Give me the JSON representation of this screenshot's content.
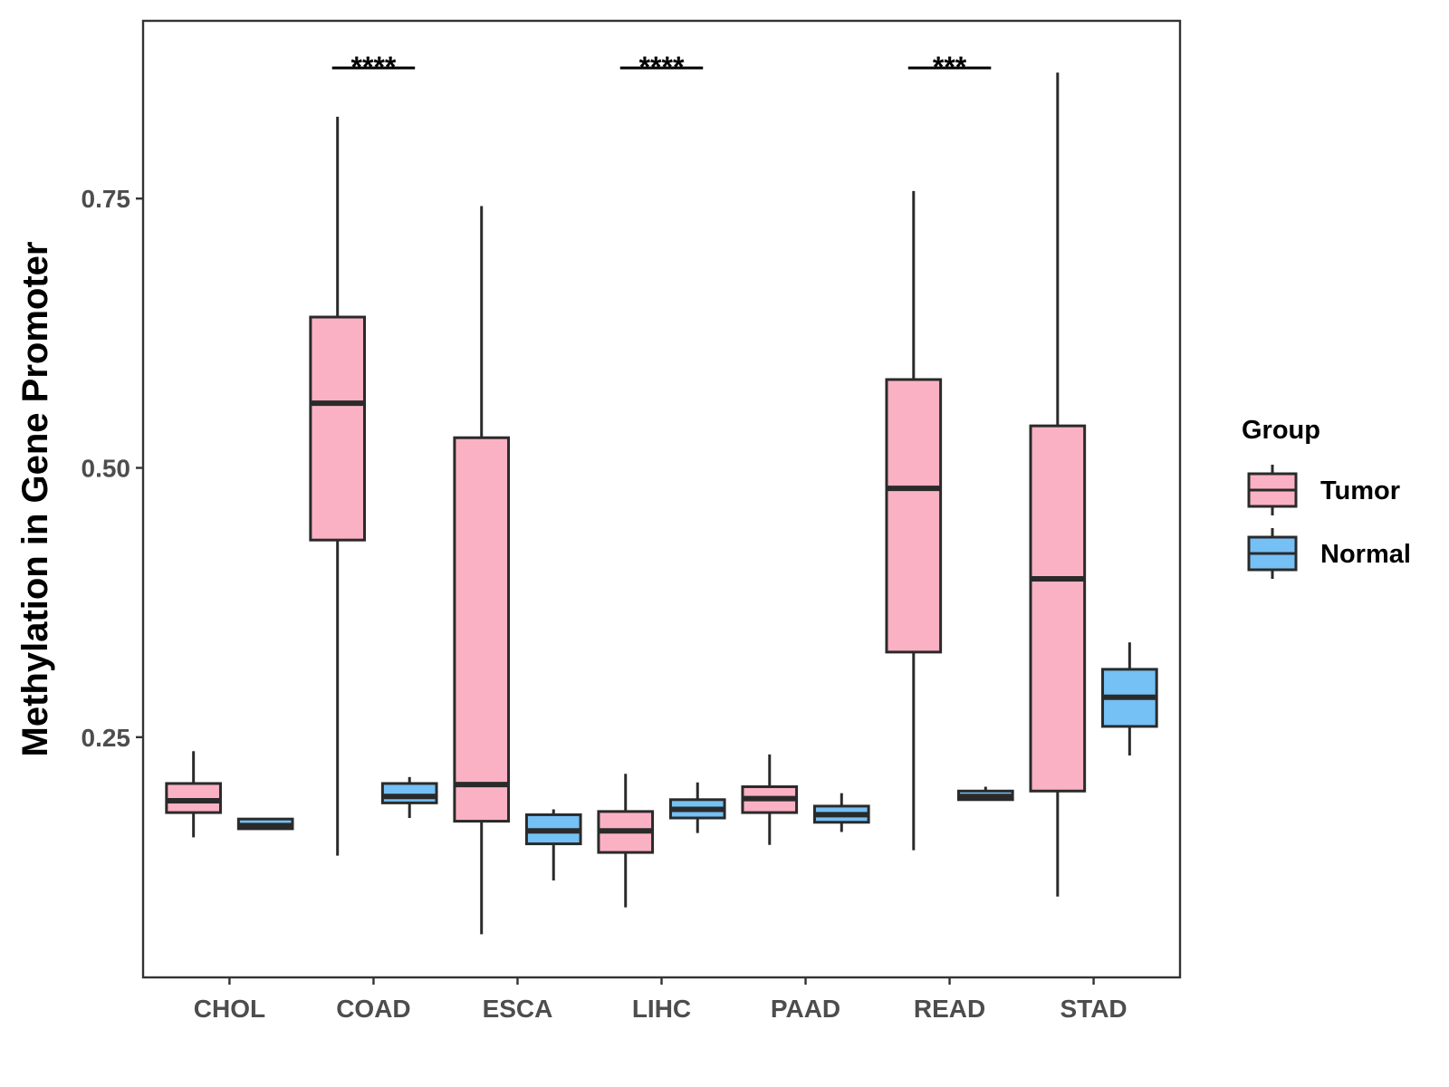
{
  "chart_data": {
    "type": "boxplot",
    "title": "",
    "xlabel": "",
    "ylabel": "Methylation in Gene Promoter",
    "ylim": [
      0.027,
      0.915
    ],
    "yticks": [
      0.25,
      0.5,
      0.75
    ],
    "ytick_labels": [
      "0.25",
      "0.50",
      "0.75"
    ],
    "categories": [
      "CHOL",
      "COAD",
      "ESCA",
      "LIHC",
      "PAAD",
      "READ",
      "STAD"
    ],
    "legend": {
      "title": "Group",
      "position": "right",
      "entries": [
        {
          "name": "Tumor",
          "color": "#FBB1C4"
        },
        {
          "name": "Normal",
          "color": "#75C0F5"
        }
      ]
    },
    "series": [
      {
        "name": "Tumor",
        "color": "#FBB1C4",
        "boxes": [
          {
            "category": "CHOL",
            "min": 0.157,
            "q1": 0.18,
            "median": 0.191,
            "q3": 0.207,
            "max": 0.237
          },
          {
            "category": "COAD",
            "min": 0.14,
            "q1": 0.433,
            "median": 0.56,
            "q3": 0.64,
            "max": 0.826
          },
          {
            "category": "ESCA",
            "min": 0.067,
            "q1": 0.172,
            "median": 0.206,
            "q3": 0.528,
            "max": 0.743
          },
          {
            "category": "LIHC",
            "min": 0.092,
            "q1": 0.143,
            "median": 0.163,
            "q3": 0.181,
            "max": 0.216
          },
          {
            "category": "PAAD",
            "min": 0.15,
            "q1": 0.18,
            "median": 0.193,
            "q3": 0.204,
            "max": 0.234
          },
          {
            "category": "READ",
            "min": 0.145,
            "q1": 0.329,
            "median": 0.481,
            "q3": 0.582,
            "max": 0.757
          },
          {
            "category": "STAD",
            "min": 0.102,
            "q1": 0.2,
            "median": 0.397,
            "q3": 0.539,
            "max": 0.867
          }
        ]
      },
      {
        "name": "Normal",
        "color": "#75C0F5",
        "boxes": [
          {
            "category": "CHOL",
            "min": 0.165,
            "q1": 0.165,
            "median": 0.168,
            "q3": 0.174,
            "max": 0.175
          },
          {
            "category": "COAD",
            "min": 0.175,
            "q1": 0.189,
            "median": 0.195,
            "q3": 0.207,
            "max": 0.213
          },
          {
            "category": "ESCA",
            "min": 0.117,
            "q1": 0.151,
            "median": 0.163,
            "q3": 0.178,
            "max": 0.183
          },
          {
            "category": "LIHC",
            "min": 0.161,
            "q1": 0.175,
            "median": 0.183,
            "q3": 0.192,
            "max": 0.208
          },
          {
            "category": "PAAD",
            "min": 0.162,
            "q1": 0.171,
            "median": 0.178,
            "q3": 0.186,
            "max": 0.198
          },
          {
            "category": "READ",
            "min": 0.192,
            "q1": 0.192,
            "median": 0.195,
            "q3": 0.2,
            "max": 0.204
          },
          {
            "category": "STAD",
            "min": 0.233,
            "q1": 0.26,
            "median": 0.287,
            "q3": 0.313,
            "max": 0.338
          }
        ]
      }
    ],
    "annotations": [
      {
        "category": "COAD",
        "label": "****"
      },
      {
        "category": "LIHC",
        "label": "****"
      },
      {
        "category": "READ",
        "label": "***"
      }
    ]
  }
}
